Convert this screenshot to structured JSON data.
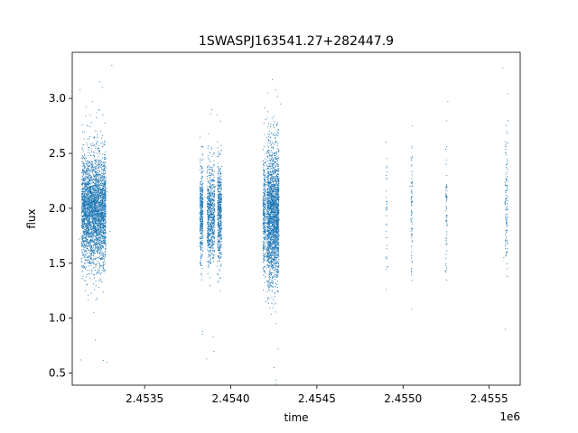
{
  "chart_data": {
    "type": "scatter",
    "title": "1SWASPJ163541.27+282447.9",
    "xlabel": "time",
    "ylabel": "flux",
    "x_offset_label": "1e6",
    "x_tick_labels": [
      "2.4535",
      "2.4540",
      "2.4545",
      "2.4550",
      "2.4555"
    ],
    "x_tick_values": [
      2453500,
      2454000,
      2454500,
      2455000,
      2455500
    ],
    "y_tick_labels": [
      "0.5",
      "1.0",
      "1.5",
      "2.0",
      "2.5",
      "3.0"
    ],
    "y_tick_values": [
      0.5,
      1.0,
      1.5,
      2.0,
      2.5,
      3.0
    ],
    "xlim": [
      2453080,
      2455680
    ],
    "ylim": [
      0.39,
      3.42
    ],
    "grid": false,
    "marker_color": "#1f77b4",
    "series": [
      {
        "points": [
          [
            2453170,
            1.93
          ],
          [
            2453210,
            2.08
          ],
          [
            2453250,
            1.85
          ],
          [
            2453280,
            2.15
          ],
          [
            2453120,
            1.72
          ],
          [
            2453190,
            2.35
          ],
          [
            2453230,
            1.62
          ],
          [
            2453260,
            2.42
          ],
          [
            2453140,
            2.21
          ],
          [
            2453300,
            1.79
          ],
          [
            2453175,
            1.4
          ],
          [
            2453225,
            2.6
          ],
          [
            2453155,
            1.25
          ],
          [
            2453245,
            2.7
          ],
          [
            2453205,
            1.05
          ],
          [
            2453185,
            2.85
          ],
          [
            2453215,
            0.8
          ],
          [
            2453240,
            3.15
          ],
          [
            2453130,
            0.62
          ],
          [
            2453280,
            0.6
          ],
          [
            2453310,
            3.3
          ],
          [
            2453125,
            3.08
          ],
          [
            2453165,
            1.98
          ],
          [
            2453195,
            2.02
          ],
          [
            2453235,
            1.88
          ],
          [
            2453820,
            1.95
          ],
          [
            2453850,
            2.1
          ],
          [
            2453880,
            1.8
          ],
          [
            2453910,
            2.2
          ],
          [
            2453930,
            1.7
          ],
          [
            2453840,
            2.45
          ],
          [
            2453900,
            1.55
          ],
          [
            2453925,
            2.55
          ],
          [
            2453830,
            1.35
          ],
          [
            2453870,
            2.68
          ],
          [
            2453835,
            0.88
          ],
          [
            2453860,
            0.63
          ],
          [
            2453890,
            2.9
          ],
          [
            2453920,
            2.85
          ],
          [
            2453940,
            1.25
          ],
          [
            2454200,
            1.92
          ],
          [
            2454230,
            2.12
          ],
          [
            2454260,
            1.78
          ],
          [
            2454280,
            2.25
          ],
          [
            2454210,
            1.62
          ],
          [
            2454245,
            2.45
          ],
          [
            2454270,
            1.42
          ],
          [
            2454220,
            2.62
          ],
          [
            2454255,
            1.2
          ],
          [
            2454240,
            2.82
          ],
          [
            2454265,
            0.95
          ],
          [
            2454215,
            3.05
          ],
          [
            2454275,
            0.72
          ],
          [
            2454250,
            0.55
          ],
          [
            2454290,
            2.95
          ],
          [
            2454900,
            2.6
          ],
          [
            2454905,
            2.0
          ],
          [
            2454910,
            1.47
          ],
          [
            2454902,
            2.3
          ],
          [
            2455040,
            2.2
          ],
          [
            2455045,
            1.9
          ],
          [
            2455055,
            2.75
          ],
          [
            2455050,
            1.08
          ],
          [
            2455048,
            1.6
          ],
          [
            2455250,
            2.4
          ],
          [
            2455255,
            1.85
          ],
          [
            2455245,
            1.43
          ],
          [
            2455260,
            2.97
          ],
          [
            2455252,
            2.1
          ],
          [
            2455580,
            3.28
          ],
          [
            2455600,
            2.7
          ],
          [
            2455590,
            2.05
          ],
          [
            2455585,
            1.55
          ],
          [
            2455595,
            0.9
          ],
          [
            2455610,
            2.8
          ]
        ]
      }
    ],
    "clusters": [
      {
        "x_center": 2453205,
        "x_spread": 70,
        "y_mean": 1.98,
        "y_sd": 0.24,
        "n": 3200
      },
      {
        "x_center": 2453830,
        "x_spread": 9,
        "y_mean": 1.95,
        "y_sd": 0.22,
        "n": 380
      },
      {
        "x_center": 2453885,
        "x_spread": 22,
        "y_mean": 1.95,
        "y_sd": 0.22,
        "n": 700
      },
      {
        "x_center": 2453935,
        "x_spread": 12,
        "y_mean": 1.95,
        "y_sd": 0.22,
        "n": 500
      },
      {
        "x_center": 2454195,
        "x_spread": 8,
        "y_mean": 1.95,
        "y_sd": 0.26,
        "n": 300
      },
      {
        "x_center": 2454245,
        "x_spread": 35,
        "y_mean": 1.93,
        "y_sd": 0.3,
        "n": 2200
      },
      {
        "x_center": 2454905,
        "x_spread": 3,
        "y_mean": 2.05,
        "y_sd": 0.28,
        "n": 30
      },
      {
        "x_center": 2455050,
        "x_spread": 4,
        "y_mean": 2.0,
        "y_sd": 0.3,
        "n": 70
      },
      {
        "x_center": 2455252,
        "x_spread": 4,
        "y_mean": 2.02,
        "y_sd": 0.28,
        "n": 60
      },
      {
        "x_center": 2455600,
        "x_spread": 7,
        "y_mean": 2.05,
        "y_sd": 0.3,
        "n": 110
      }
    ]
  }
}
